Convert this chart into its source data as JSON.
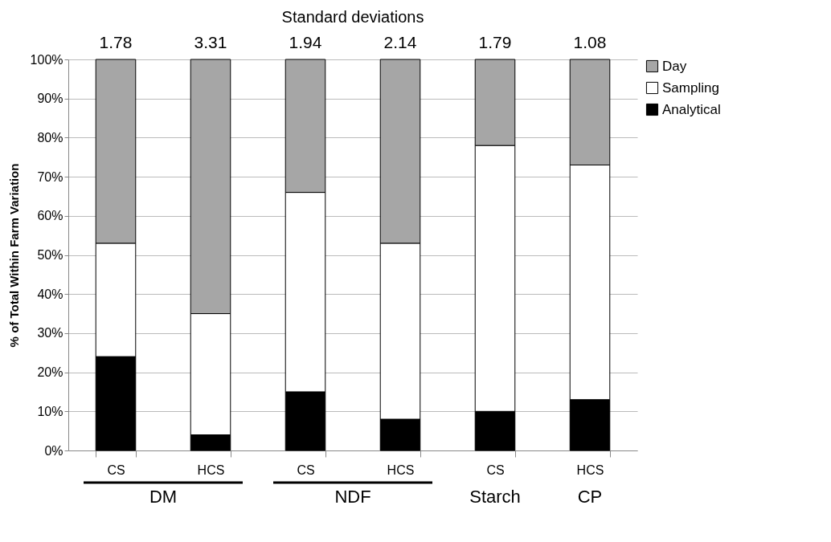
{
  "chart_data": {
    "type": "bar",
    "stacked": true,
    "ylabel": "% of Total Within Farm Variation",
    "categories": [
      "CS",
      "HCS",
      "CS",
      "HCS",
      "CS",
      "HCS"
    ],
    "series": [
      {
        "name": "Analytical",
        "color": "#000000",
        "values": [
          24,
          4,
          15,
          8,
          10,
          13
        ]
      },
      {
        "name": "Sampling",
        "color": "#ffffff",
        "values": [
          29,
          31,
          51,
          45,
          68,
          60
        ]
      },
      {
        "name": "Day",
        "color": "#a6a6a6",
        "values": [
          47,
          65,
          34,
          47,
          22,
          27
        ]
      }
    ],
    "ylim": [
      0,
      100
    ],
    "yticks": [
      {
        "value": 0,
        "label": "0%"
      },
      {
        "value": 10,
        "label": "10%"
      },
      {
        "value": 20,
        "label": "20%"
      },
      {
        "value": 30,
        "label": "30%"
      },
      {
        "value": 40,
        "label": "40%"
      },
      {
        "value": 50,
        "label": "50%"
      },
      {
        "value": 60,
        "label": "60%"
      },
      {
        "value": 70,
        "label": "70%"
      },
      {
        "value": 80,
        "label": "80%"
      },
      {
        "value": 90,
        "label": "90%"
      },
      {
        "value": 100,
        "label": "100%"
      }
    ],
    "annotations": [
      "Standard deviations",
      "1.78",
      "3.31",
      "1.94",
      "2.14",
      "1.79",
      "1.08",
      "DM",
      "NDF",
      "Starch",
      "CP"
    ],
    "grid": "y",
    "legend": "right"
  }
}
